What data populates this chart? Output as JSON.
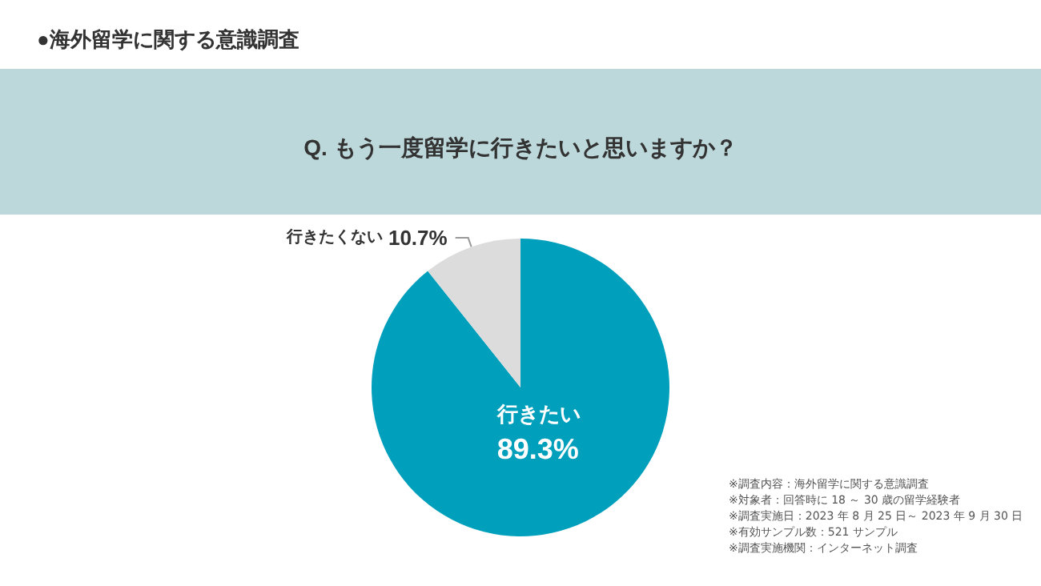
{
  "chart_data": {
    "type": "pie",
    "title": "●海外留学に関する意識調査",
    "subtitle": "Q. もう一度留学に行きたいと思いますか？",
    "categories": [
      "行きたい",
      "行きたくない"
    ],
    "values": [
      89.3,
      10.7
    ],
    "colors": [
      "#00a0bc",
      "#dcdcdc"
    ],
    "value_labels": [
      "89.3%",
      "10.7%"
    ],
    "legend": false,
    "annotations": [
      "※調査内容：海外留学に関する意識調査",
      "※対象者：回答時に 18 ～ 30 歳の留学経験者",
      "※調査実施日：2023 年 8 月 25 日～ 2023 年 9 月 30 日",
      "※有効サンプル数：521 サンプル",
      "※調査実施機関：インターネット調査"
    ]
  }
}
